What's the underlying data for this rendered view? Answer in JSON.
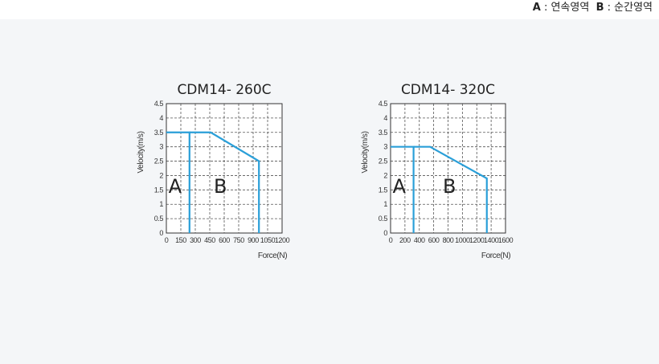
{
  "legend": {
    "a_key": "A",
    "a_text": " : 연속영역",
    "b_key": "B",
    "b_text": " : 순간영역"
  },
  "chart_data": [
    {
      "type": "line",
      "title": "CDM14- 260C",
      "xlabel": "Force(N)",
      "ylabel": "Velocity(m/s)",
      "xlim": [
        0,
        1200
      ],
      "ylim": [
        0,
        4.5
      ],
      "x_ticks": [
        0,
        150,
        300,
        450,
        600,
        750,
        900,
        1050,
        1200
      ],
      "x_tick_labels": [
        "0",
        "150",
        "300",
        "450",
        "600",
        "750",
        "900",
        "1050",
        "1200"
      ],
      "y_ticks": [
        0,
        0.5,
        1,
        1.5,
        2,
        2.5,
        3,
        3.5,
        4,
        4.5
      ],
      "y_tick_labels": [
        "0",
        "0.5",
        "1",
        "1.5",
        "2",
        "2.5",
        "3",
        "3.5",
        "4",
        "4.5"
      ],
      "grid": true,
      "line_color": "#2a9fd8",
      "series": [
        {
          "x": [
            0,
            240,
            240
          ],
          "y": [
            3.5,
            3.5,
            0
          ]
        },
        {
          "x": [
            240,
            460,
            960,
            960
          ],
          "y": [
            3.5,
            3.5,
            2.5,
            0
          ]
        }
      ],
      "regions": [
        {
          "label": "A",
          "x": 90,
          "y": 1.4
        },
        {
          "label": "B",
          "x": 560,
          "y": 1.4
        }
      ]
    },
    {
      "type": "line",
      "title": "CDM14- 320C",
      "xlabel": "Force(N)",
      "ylabel": "Velocity(m/s)",
      "xlim": [
        0,
        1600
      ],
      "ylim": [
        0,
        4.5
      ],
      "x_ticks": [
        0,
        200,
        400,
        600,
        800,
        1000,
        1200,
        1400,
        1600
      ],
      "x_tick_labels": [
        "0",
        "200",
        "400",
        "600",
        "800",
        "1000",
        "1200",
        "1400",
        "1600"
      ],
      "y_ticks": [
        0,
        0.5,
        1,
        1.5,
        2,
        2.5,
        3,
        3.5,
        4,
        4.5
      ],
      "y_tick_labels": [
        "0",
        "0.5",
        "1",
        "1.5",
        "2",
        "2.5",
        "3",
        "3.5",
        "4",
        "4.5"
      ],
      "grid": true,
      "line_color": "#2a9fd8",
      "series": [
        {
          "x": [
            0,
            320,
            320
          ],
          "y": [
            3,
            3,
            0
          ]
        },
        {
          "x": [
            320,
            550,
            1340,
            1340
          ],
          "y": [
            3,
            3,
            1.9,
            0
          ]
        }
      ],
      "regions": [
        {
          "label": "A",
          "x": 120,
          "y": 1.4
        },
        {
          "label": "B",
          "x": 820,
          "y": 1.4
        }
      ]
    }
  ]
}
